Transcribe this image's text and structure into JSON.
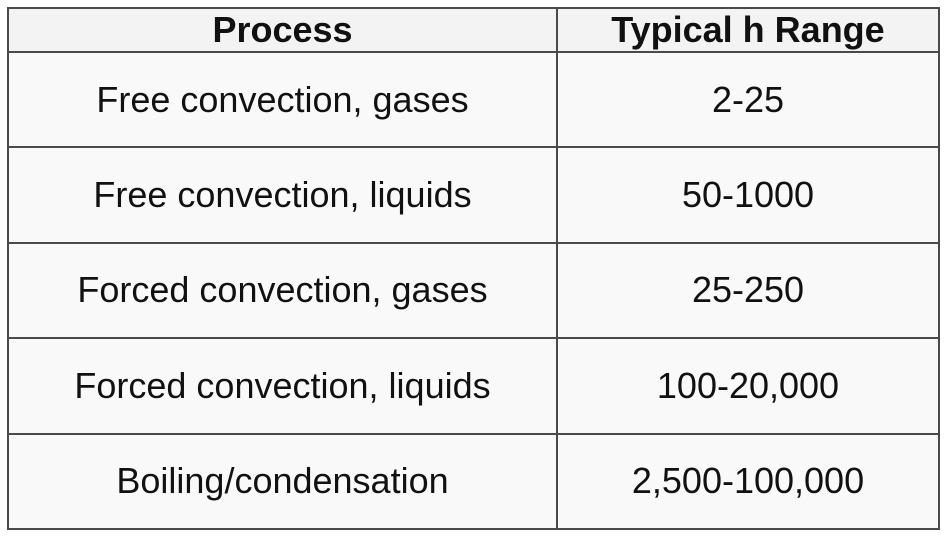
{
  "table": {
    "header": [
      "Process",
      "Typical h Range"
    ],
    "rows": [
      [
        "Free convection, gases",
        "2-25"
      ],
      [
        "Free convection, liquids",
        "50-1000"
      ],
      [
        "Forced convection, gases",
        "25-250"
      ],
      [
        "Forced convection, liquids",
        "100-20,000"
      ],
      [
        "Boiling/condensation",
        "2,500-100,000"
      ]
    ]
  }
}
